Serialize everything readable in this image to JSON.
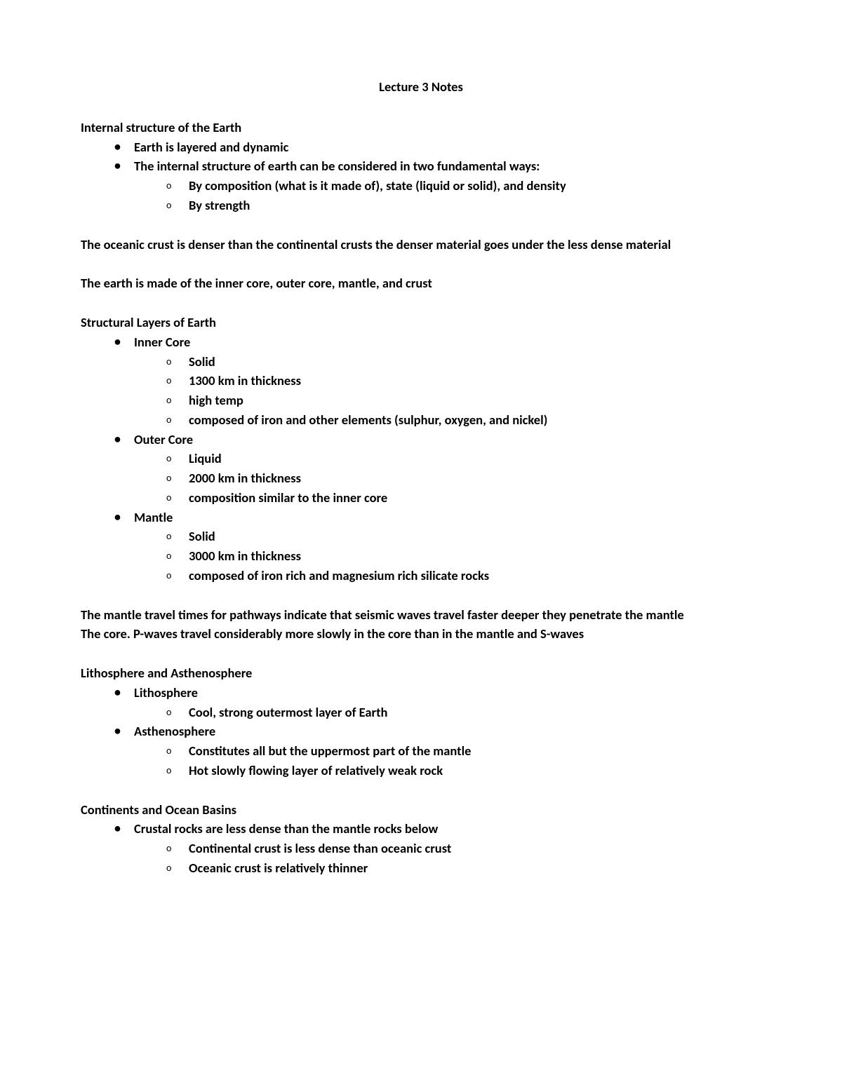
{
  "title": "Lecture 3 Notes",
  "section1": {
    "heading": "Internal structure of the Earth",
    "items": [
      "Earth is layered and dynamic",
      "The internal structure of earth can be considered in two fundamental ways:"
    ],
    "subitems": [
      "By composition (what is it made of), state (liquid or solid), and density",
      "By strength"
    ]
  },
  "para1": "The oceanic crust is denser than the continental crusts the denser material goes under the less dense material",
  "para2": "The earth is made of the inner core, outer core, mantle, and crust",
  "section2": {
    "heading": "Structural Layers of Earth",
    "inner_core": {
      "label": "Inner Core",
      "items": [
        "Solid",
        "1300 km in thickness",
        "high temp",
        "composed of iron and other elements (sulphur, oxygen, and nickel)"
      ]
    },
    "outer_core": {
      "label": "Outer Core",
      "items": [
        "Liquid",
        "2000 km in thickness",
        "composition similar to the inner core"
      ]
    },
    "mantle": {
      "label": "Mantle",
      "items": [
        "Solid",
        "3000 km in thickness",
        "composed of iron rich and magnesium rich silicate rocks"
      ]
    }
  },
  "para3": "The mantle travel times for pathways indicate that seismic waves travel faster deeper they penetrate the mantle",
  "para4": "The core. P-waves travel considerably more slowly in the core than in the mantle and S-waves",
  "section3": {
    "heading": "Lithosphere and Asthenosphere",
    "lithosphere": {
      "label": "Lithosphere",
      "items": [
        "Cool, strong outermost layer of Earth"
      ]
    },
    "asthenosphere": {
      "label": "Asthenosphere",
      "items": [
        "Constitutes all but the uppermost part of the mantle",
        "Hot slowly flowing layer of relatively weak rock"
      ]
    }
  },
  "section4": {
    "heading": "Continents and Ocean Basins",
    "item1": "Crustal rocks are less dense than the mantle rocks below",
    "subitems": [
      "Continental crust is less dense than oceanic crust",
      "Oceanic crust is relatively thinner"
    ]
  }
}
